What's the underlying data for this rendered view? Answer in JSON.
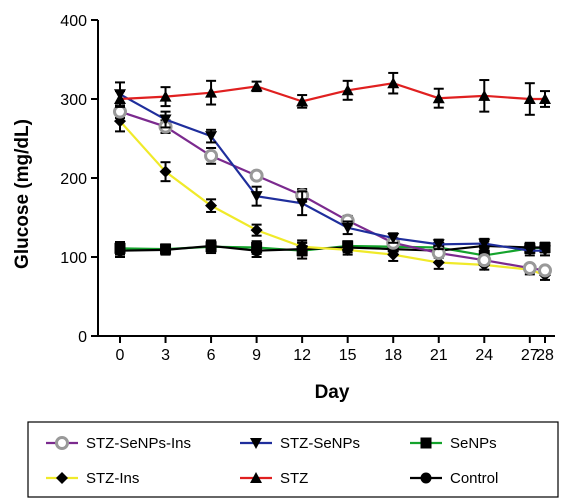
{
  "chart_data": {
    "type": "line",
    "title": "",
    "xlabel": "Day",
    "ylabel": "Glucose (mg/dL)",
    "x": [
      0,
      3,
      6,
      9,
      12,
      15,
      18,
      21,
      24,
      27,
      28
    ],
    "xticks": [
      "0",
      "3",
      "6",
      "9",
      "12",
      "15",
      "18",
      "21",
      "24",
      "27",
      "28"
    ],
    "yticks": [
      "0",
      "100",
      "200",
      "300",
      "400"
    ],
    "ylim": [
      0,
      400
    ],
    "grid": false,
    "legend": "bottom, outside plot, boxed",
    "series": [
      {
        "name": "STZ-SeNPs-Ins",
        "color": "#7b2a8e",
        "marker": "open-circle-grey",
        "values": [
          284,
          265,
          228,
          203,
          178,
          146,
          118,
          105,
          96,
          86,
          83
        ],
        "errors": [
          8,
          8,
          10,
          5,
          8,
          6,
          6,
          6,
          5,
          5,
          5
        ]
      },
      {
        "name": "STZ-SeNPs",
        "color": "#1f2e9c",
        "marker": "triangle-down",
        "values": [
          306,
          274,
          253,
          177,
          168,
          137,
          124,
          116,
          117,
          108,
          108
        ],
        "errors": [
          15,
          10,
          8,
          12,
          15,
          8,
          6,
          6,
          6,
          6,
          6
        ]
      },
      {
        "name": "SeNPs",
        "color": "#14a32c",
        "marker": "square",
        "values": [
          111,
          110,
          113,
          112,
          108,
          114,
          113,
          112,
          102,
          111,
          112
        ],
        "errors": [
          8,
          6,
          8,
          8,
          10,
          6,
          6,
          6,
          6,
          6,
          6
        ]
      },
      {
        "name": "STZ-Ins",
        "color": "#f0ea2a",
        "marker": "diamond",
        "values": [
          272,
          208,
          165,
          134,
          113,
          109,
          103,
          93,
          90,
          84,
          77
        ],
        "errors": [
          13,
          12,
          8,
          7,
          8,
          6,
          8,
          8,
          6,
          6,
          6
        ]
      },
      {
        "name": "STZ",
        "color": "#e02020",
        "marker": "triangle-up",
        "values": [
          300,
          303,
          308,
          316,
          297,
          311,
          320,
          301,
          304,
          300,
          300
        ],
        "errors": [
          10,
          12,
          15,
          6,
          8,
          12,
          13,
          12,
          20,
          20,
          10
        ]
      },
      {
        "name": "Control",
        "color": "#000000",
        "marker": "circle",
        "values": [
          108,
          109,
          114,
          108,
          110,
          112,
          110,
          108,
          114,
          112,
          112
        ],
        "errors": [
          8,
          6,
          6,
          8,
          8,
          6,
          6,
          6,
          6,
          6,
          6
        ]
      }
    ]
  }
}
